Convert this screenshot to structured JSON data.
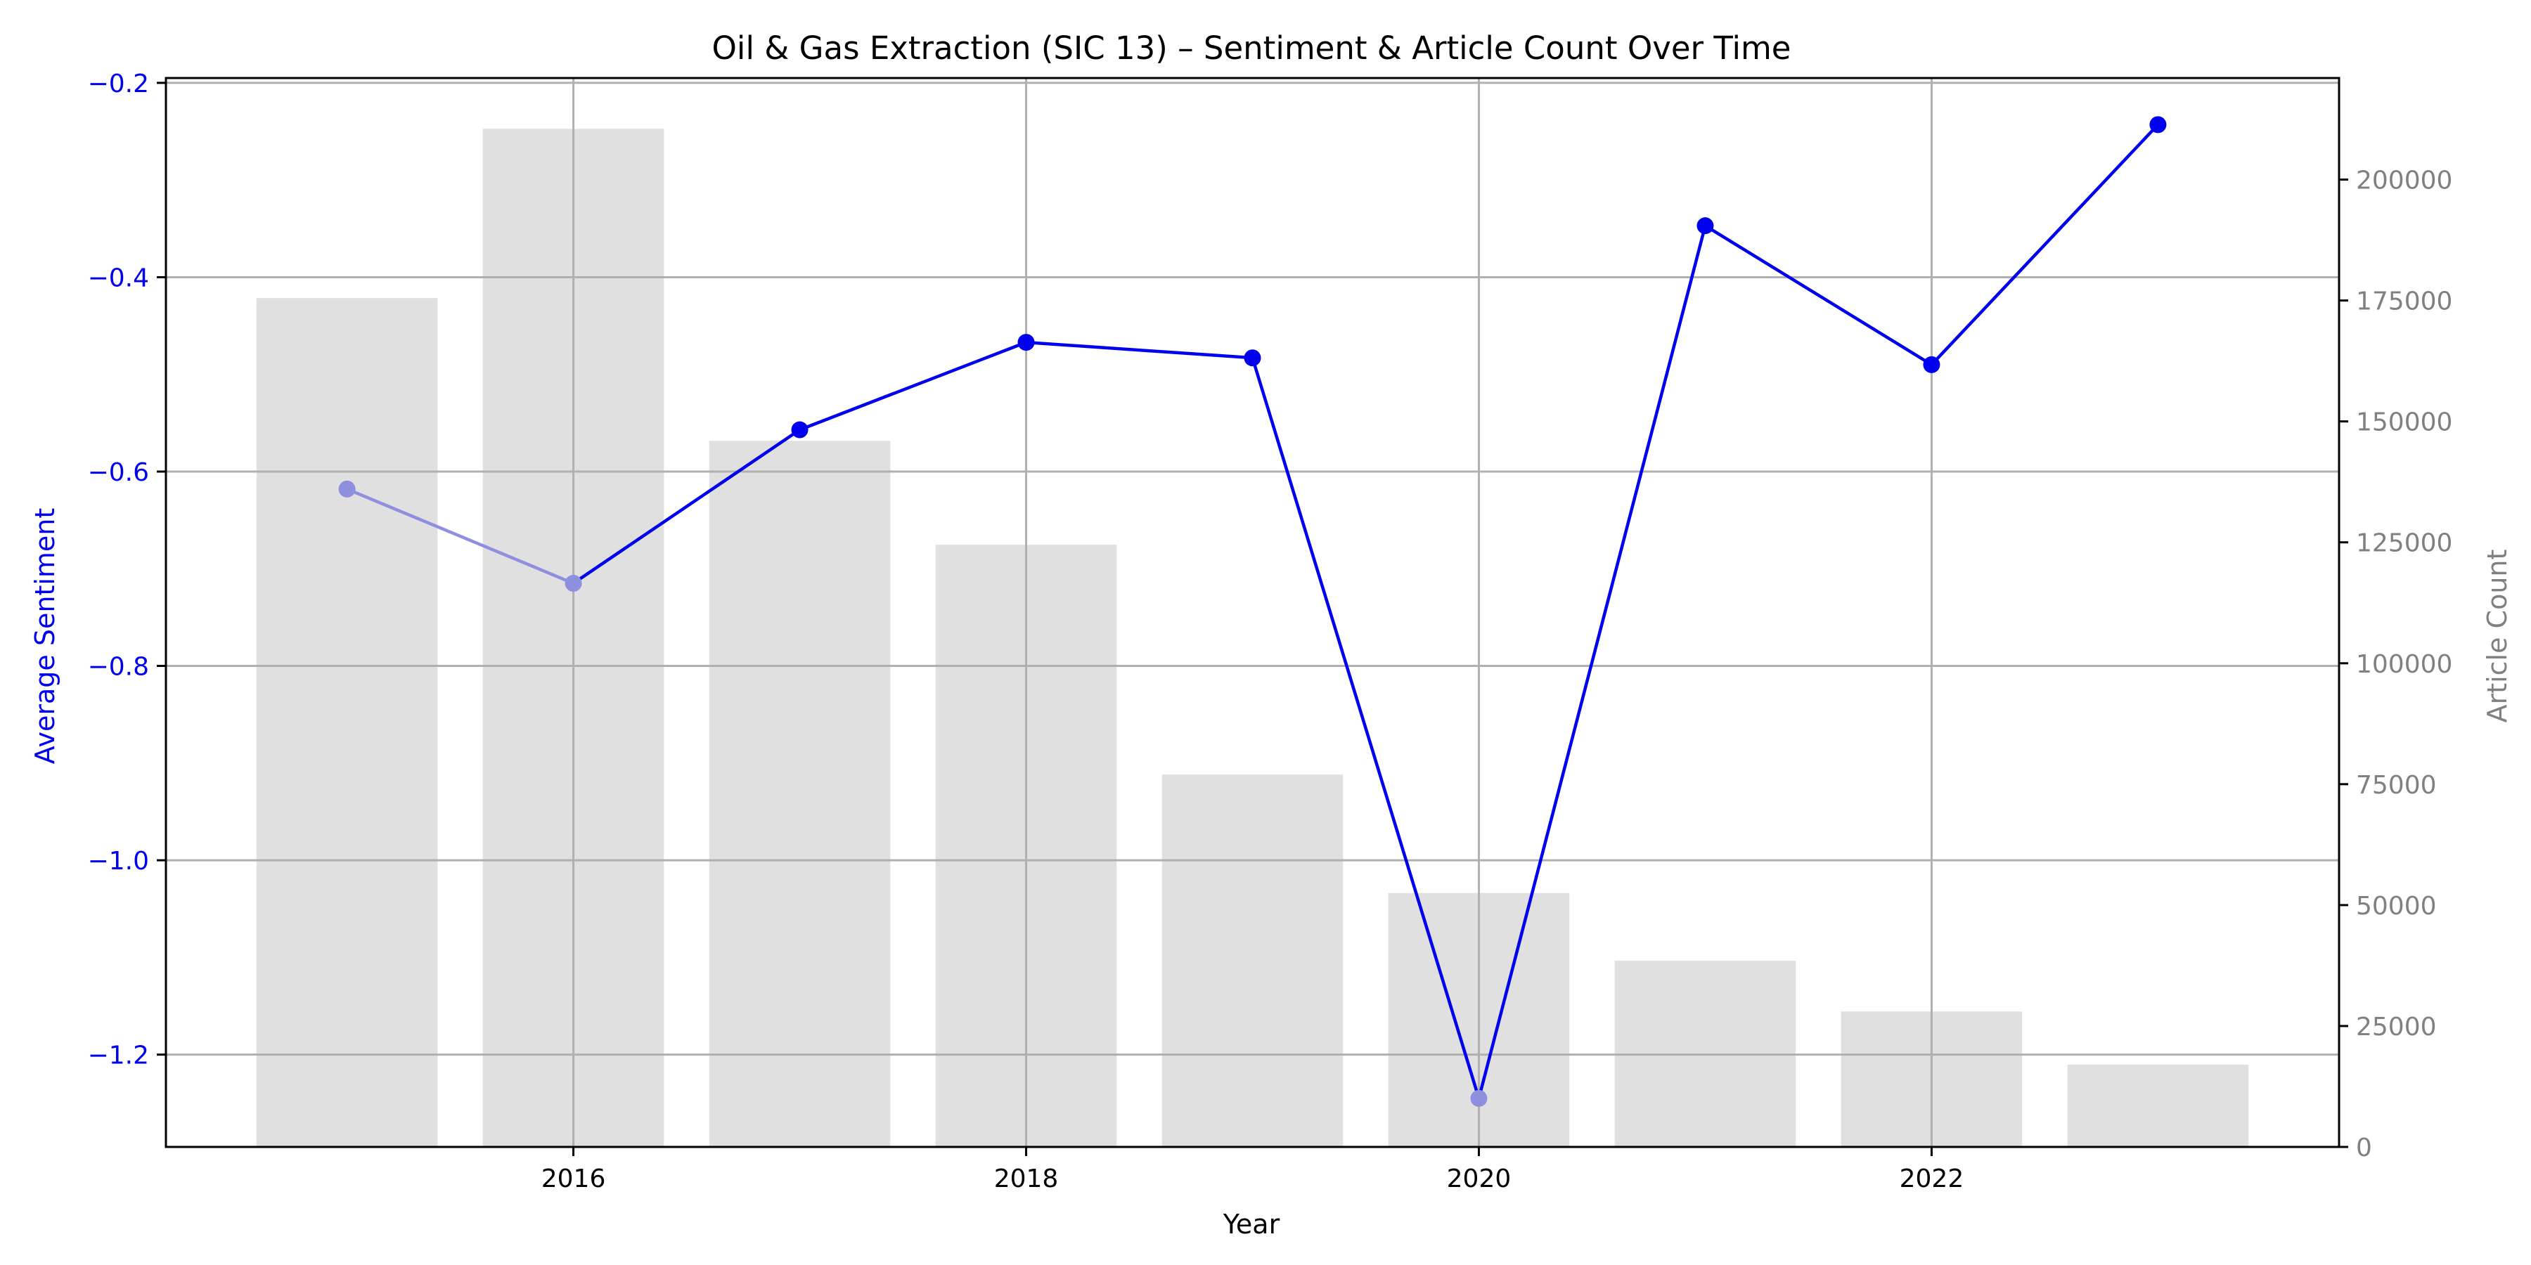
{
  "chart_data": {
    "type": "bar+line",
    "title": "Oil & Gas Extraction (SIC 13) – Sentiment & Article Count Over Time",
    "xlabel": "Year",
    "ylabel_left": "Average Sentiment",
    "ylabel_right": "Article Count",
    "x": [
      2015,
      2016,
      2017,
      2018,
      2019,
      2020,
      2021,
      2022,
      2023
    ],
    "x_ticks": [
      "2016",
      "2018",
      "2020",
      "2022"
    ],
    "xlim": [
      2014.2,
      2023.8
    ],
    "grid": true,
    "series": [
      {
        "kind": "bar",
        "axis": "right",
        "color": "#e0e0e0",
        "values": [
          175500,
          210500,
          146000,
          124500,
          77000,
          52500,
          38500,
          28000,
          17000
        ]
      },
      {
        "kind": "line",
        "axis": "left",
        "color": "#0000ee",
        "faded_color": "#8f8fe0",
        "values": [
          -0.618,
          -0.715,
          -0.557,
          -0.467,
          -0.483,
          -1.245,
          -0.347,
          -0.49,
          -0.243
        ],
        "faded_points": [
          2015,
          2016,
          2020
        ]
      }
    ],
    "y_left": {
      "ylim": [
        -1.295,
        -0.195
      ],
      "ticks": [
        -1.2,
        -1.0,
        -0.8,
        -0.6,
        -0.4,
        -0.2
      ],
      "tick_labels": [
        "−1.2",
        "−1.0",
        "−0.8",
        "−0.6",
        "−0.4",
        "−0.2"
      ],
      "color": "#0000ee"
    },
    "y_right": {
      "ylim": [
        0,
        221000
      ],
      "ticks": [
        0,
        25000,
        50000,
        75000,
        100000,
        125000,
        150000,
        175000,
        200000
      ],
      "tick_labels": [
        "0",
        "25000",
        "50000",
        "75000",
        "100000",
        "125000",
        "150000",
        "175000",
        "200000"
      ],
      "color": "#808080"
    }
  }
}
